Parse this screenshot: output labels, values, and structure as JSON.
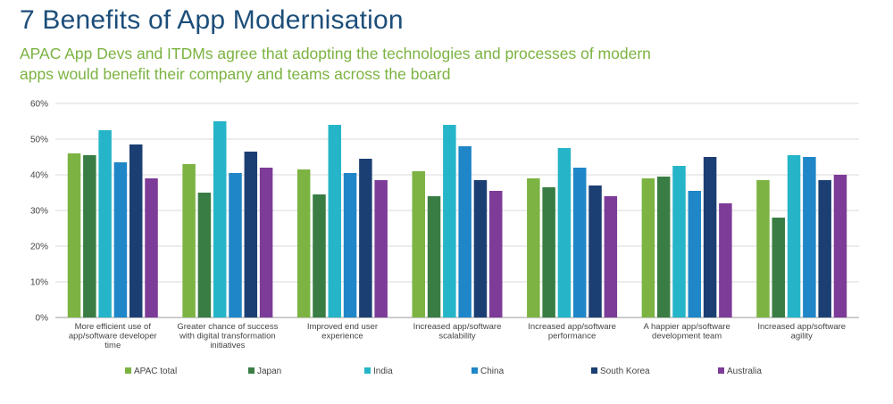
{
  "title": "7 Benefits of App Modernisation",
  "subtitle": [
    "APAC App Devs and ITDMs agree that adopting the technologies and processes of modern",
    "apps would benefit their company and teams across the board"
  ],
  "chart_data": {
    "type": "bar",
    "categories": [
      [
        "More efficient use of",
        "app/software developer",
        "time"
      ],
      [
        "Greater chance of success",
        "with digital transformation",
        "initiatives"
      ],
      [
        "Improved end user",
        "experience"
      ],
      [
        "Increased app/software",
        "scalability"
      ],
      [
        "Increased app/software",
        "performance"
      ],
      [
        "A happier app/software",
        "development team"
      ],
      [
        "Increased app/software",
        "agility"
      ]
    ],
    "series": [
      {
        "name": "APAC total",
        "color": "#7cb342",
        "values": [
          46,
          43,
          41.5,
          41,
          39,
          39,
          38.5
        ]
      },
      {
        "name": "Japan",
        "color": "#3a7d44",
        "values": [
          45.5,
          35,
          34.5,
          34,
          36.5,
          39.5,
          28
        ]
      },
      {
        "name": "India",
        "color": "#26b5c8",
        "values": [
          52.5,
          55,
          54,
          54,
          47.5,
          42.5,
          45.5
        ]
      },
      {
        "name": "China",
        "color": "#1f86c8",
        "values": [
          43.5,
          40.5,
          40.5,
          48,
          42,
          35.5,
          45
        ]
      },
      {
        "name": "South Korea",
        "color": "#1c3f73",
        "values": [
          48.5,
          46.5,
          44.5,
          38.5,
          37,
          45,
          38.5
        ]
      },
      {
        "name": "Australia",
        "color": "#7d3c98",
        "values": [
          39,
          42,
          38.5,
          35.5,
          34,
          32,
          40
        ]
      }
    ],
    "ylim": [
      0,
      60
    ],
    "yticks": [
      "0%",
      "10%",
      "20%",
      "30%",
      "40%",
      "50%",
      "60%"
    ],
    "grid": true,
    "legend": "bottom"
  }
}
